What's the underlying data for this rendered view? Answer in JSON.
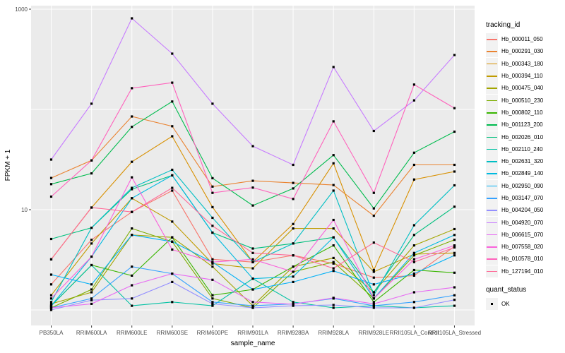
{
  "figure": {
    "background": "#FFFFFF",
    "panel_background": "#EBEBEB",
    "grid_color": "#FFFFFF",
    "axis_text_color": "#4D4D4D",
    "tick_color": "#333333",
    "point_color": "#000000"
  },
  "chart_data": {
    "type": "line",
    "title": "",
    "xlabel": "sample_name",
    "ylabel": "FPKM + 1",
    "y_scale": "log10",
    "ylim": [
      1,
      1000
    ],
    "yticks": [
      {
        "value": 1000,
        "label": "1000"
      },
      {
        "value": 10,
        "label": "10"
      }
    ],
    "grid_y_values": [
      1000,
      100,
      10,
      1
    ],
    "grid": true,
    "legend_position": "right",
    "legend_title": "tracking_id",
    "legend2_title": "quant_status",
    "legend2_items": [
      {
        "label": "OK",
        "shape": "filled-square",
        "color": "#000000"
      }
    ],
    "categories": [
      "PB350LA",
      "RRIM600LA",
      "RRIM600LE",
      "RRIM600SE",
      "RRIM600PE",
      "RRIM901LA",
      "RRIM928BA",
      "RRIM928LA",
      "RRIM928LE",
      "RRII105LA_Control",
      "RRII105LA_Stressed"
    ],
    "series": [
      {
        "name": "Hb_000011_050",
        "color": "#F8766D",
        "values": [
          1.8,
          5.0,
          9.5,
          15.5,
          3.2,
          3.0,
          3.5,
          2.9,
          2.1,
          2.2,
          4.3
        ]
      },
      {
        "name": "Hb_000291_030",
        "color": "#EA8331",
        "values": [
          20.7,
          31,
          85,
          68,
          17,
          19.4,
          18.5,
          17.6,
          8.7,
          28,
          28
        ]
      },
      {
        "name": "Hb_000343_180",
        "color": "#D89000",
        "values": [
          3.2,
          10.5,
          30,
          54,
          10.6,
          3.0,
          7.2,
          29,
          2.5,
          20,
          24
        ]
      },
      {
        "name": "Hb_000394_110",
        "color": "#C09B00",
        "values": [
          1.4,
          4.6,
          13,
          7.6,
          2.9,
          2.6,
          6.5,
          6.5,
          2.4,
          3.6,
          3.7
        ]
      },
      {
        "name": "Hb_000475_040",
        "color": "#A3A500",
        "values": [
          1.15,
          1.5,
          5.6,
          5.3,
          2.7,
          1.1,
          2.7,
          3.3,
          1.5,
          4.4,
          6.4
        ]
      },
      {
        "name": "Hb_000510_230",
        "color": "#7CAE00",
        "values": [
          1.05,
          1.6,
          6.5,
          4.8,
          1.3,
          1.05,
          2.4,
          3.0,
          1.3,
          3.5,
          5.0
        ]
      },
      {
        "name": "Hb_000802_110",
        "color": "#39B600",
        "values": [
          1.1,
          2.8,
          2.2,
          5.3,
          1.4,
          1.6,
          2.7,
          4.4,
          1.2,
          2.5,
          2.35
        ]
      },
      {
        "name": "Hb_001123_200",
        "color": "#00BB4E",
        "values": [
          18,
          23,
          67,
          120,
          20.6,
          11,
          16.3,
          35,
          10.3,
          37,
          60
        ]
      },
      {
        "name": "Hb_002026_010",
        "color": "#00BF7D",
        "values": [
          5.1,
          6.6,
          16,
          22,
          5.9,
          4.1,
          4.6,
          5.3,
          1.5,
          5.6,
          10.7
        ]
      },
      {
        "name": "Hb_002110_240",
        "color": "#00C1A3",
        "values": [
          1.1,
          2.8,
          1.1,
          1.2,
          1.1,
          2.05,
          1.2,
          1.05,
          1.1,
          1.05,
          1.1
        ]
      },
      {
        "name": "Hb_002631_320",
        "color": "#00BFC4",
        "values": [
          1.2,
          6.6,
          16.5,
          25,
          8.3,
          3.0,
          4.6,
          15.5,
          1.4,
          7.0,
          17.5
        ]
      },
      {
        "name": "Hb_002849_140",
        "color": "#00BAE0",
        "values": [
          1.1,
          3.4,
          13,
          22,
          5.9,
          2.05,
          2.15,
          5.3,
          1.3,
          3.7,
          5.6
        ]
      },
      {
        "name": "Hb_002950_090",
        "color": "#00B0F6",
        "values": [
          2.25,
          1.8,
          5.6,
          4.8,
          3.0,
          1.6,
          1.9,
          2.45,
          1.8,
          2.3,
          3.5
        ]
      },
      {
        "name": "Hb_003147_070",
        "color": "#35A2FF",
        "values": [
          1.05,
          1.3,
          2.7,
          2.3,
          1.2,
          1.1,
          1.15,
          1.3,
          1.1,
          1.2,
          1.4
        ]
      },
      {
        "name": "Hb_004204_050",
        "color": "#9590FF",
        "values": [
          1.0,
          1.25,
          1.3,
          1.9,
          1.15,
          1.05,
          1.1,
          1.12,
          1.05,
          1.05,
          1.26
        ]
      },
      {
        "name": "Hb_004920_070",
        "color": "#C77CFF",
        "values": [
          31.6,
          114,
          810,
          360,
          114,
          43,
          28,
          265,
          61,
          123,
          349
        ]
      },
      {
        "name": "Hb_006615_070",
        "color": "#E76BF3",
        "values": [
          1.05,
          1.15,
          1.76,
          2.3,
          2.0,
          1.2,
          1.14,
          1.32,
          1.15,
          1.5,
          1.68
        ]
      },
      {
        "name": "Hb_007558_020",
        "color": "#FA62DB",
        "values": [
          1.3,
          3.4,
          21,
          4.0,
          3.0,
          3.2,
          2.4,
          7.9,
          1.3,
          3.2,
          4.4
        ]
      },
      {
        "name": "Hb_010578_010",
        "color": "#FF62BC",
        "values": [
          13.5,
          31,
          163,
          185,
          14.7,
          16.6,
          12.8,
          76,
          14.7,
          177,
          103
        ]
      },
      {
        "name": "Hb_127194_010",
        "color": "#FF6A98",
        "values": [
          3.2,
          10.5,
          9.5,
          16.5,
          6.9,
          3.7,
          3.5,
          2.6,
          4.7,
          3.0,
          4.2
        ]
      }
    ]
  }
}
